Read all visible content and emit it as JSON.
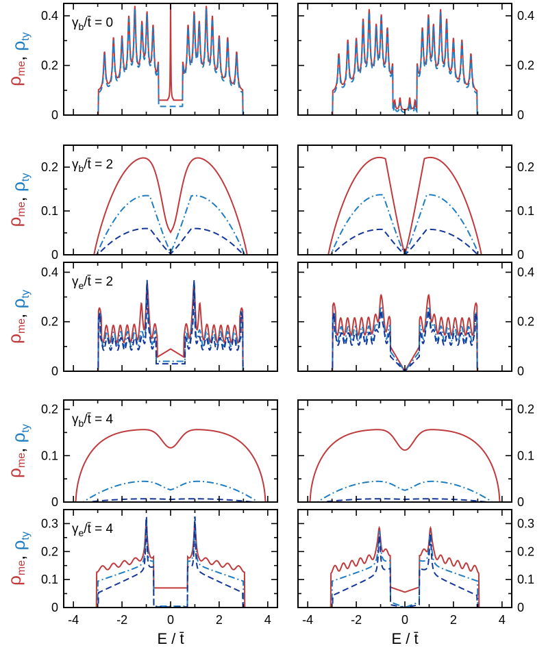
{
  "figure": {
    "xlabel": "E / t̄",
    "ylabel_parts": [
      {
        "text": "ρ",
        "sub": "me",
        "color": "#c0393b"
      },
      {
        "text": ", ",
        "sub": "",
        "color": "#000000"
      },
      {
        "text": "ρ",
        "sub": "ty",
        "color": "#1d7cc2"
      }
    ],
    "colors": {
      "red": "#c0393b",
      "light_blue": "#1d7cc2",
      "dark_blue": "#13359a"
    },
    "x_ticks": [
      "-4",
      "-2",
      "0",
      "2",
      "4"
    ]
  },
  "chart_data": [
    {
      "id": "r1l",
      "type": "line",
      "row": 1,
      "column": "left",
      "annotation": {
        "symbol": "γ",
        "sub": "b",
        "suffix": "/t̄ = 0"
      },
      "xlim": [
        -4.4,
        4.4
      ],
      "ylim": [
        0,
        0.45
      ],
      "y_ticks": [
        "0",
        "0.2",
        "0.4"
      ],
      "series": [
        {
          "name": "ρ_me",
          "style": "solid",
          "color": "red"
        },
        {
          "name": "ρ_ty",
          "style": "dash",
          "color": "light_blue"
        }
      ]
    },
    {
      "id": "r1r",
      "type": "line",
      "row": 1,
      "column": "right",
      "annotation": null,
      "xlim": [
        -4.4,
        4.4
      ],
      "ylim": [
        0,
        0.45
      ],
      "y_ticks": [
        "0",
        "0.2",
        "0.4"
      ],
      "series": [
        {
          "name": "ρ_me",
          "style": "solid",
          "color": "red"
        },
        {
          "name": "ρ_ty",
          "style": "dash",
          "color": "light_blue"
        }
      ]
    },
    {
      "id": "r2l",
      "type": "line",
      "row": 2,
      "column": "left",
      "annotation": {
        "symbol": "γ",
        "sub": "b",
        "suffix": "/t̄ = 2"
      },
      "xlim": [
        -4.4,
        4.4
      ],
      "ylim": [
        0,
        0.25
      ],
      "y_ticks": [
        "0",
        "0.1",
        "0.2"
      ],
      "series": [
        {
          "name": "ρ_me",
          "style": "solid",
          "color": "red"
        },
        {
          "name": "ρ_ty",
          "style": "dashdot",
          "color": "light_blue"
        },
        {
          "name": "ρ_ty",
          "style": "dash",
          "color": "dark_blue"
        }
      ]
    },
    {
      "id": "r2r",
      "type": "line",
      "row": 2,
      "column": "right",
      "annotation": null,
      "xlim": [
        -4.4,
        4.4
      ],
      "ylim": [
        0,
        0.25
      ],
      "y_ticks": [
        "0",
        "0.1",
        "0.2"
      ],
      "series": [
        {
          "name": "ρ_me",
          "style": "solid",
          "color": "red"
        },
        {
          "name": "ρ_ty",
          "style": "dashdot",
          "color": "light_blue"
        },
        {
          "name": "ρ_ty",
          "style": "dash",
          "color": "dark_blue"
        }
      ]
    },
    {
      "id": "r3l",
      "type": "line",
      "row": 3,
      "column": "left",
      "annotation": {
        "symbol": "γ",
        "sub": "e",
        "suffix": "/t̄ = 2"
      },
      "xlim": [
        -4.4,
        4.4
      ],
      "ylim": [
        0,
        0.44
      ],
      "y_ticks": [
        "0",
        "0.2",
        "0.4"
      ],
      "series": [
        {
          "name": "ρ_me",
          "style": "solid",
          "color": "red"
        },
        {
          "name": "ρ_ty",
          "style": "dashdot",
          "color": "light_blue"
        },
        {
          "name": "ρ_ty",
          "style": "dash",
          "color": "dark_blue"
        }
      ]
    },
    {
      "id": "r3r",
      "type": "line",
      "row": 3,
      "column": "right",
      "annotation": null,
      "xlim": [
        -4.4,
        4.4
      ],
      "ylim": [
        0,
        0.44
      ],
      "y_ticks": [
        "0",
        "0.2",
        "0.4"
      ],
      "series": [
        {
          "name": "ρ_me",
          "style": "solid",
          "color": "red"
        },
        {
          "name": "ρ_ty",
          "style": "dashdot",
          "color": "light_blue"
        },
        {
          "name": "ρ_ty",
          "style": "dash",
          "color": "dark_blue"
        }
      ]
    },
    {
      "id": "r4l",
      "type": "line",
      "row": 4,
      "column": "left",
      "annotation": {
        "symbol": "γ",
        "sub": "b",
        "suffix": "/t̄ = 4"
      },
      "xlim": [
        -4.4,
        4.4
      ],
      "ylim": [
        0,
        0.22
      ],
      "y_ticks": [
        "0",
        "0.1",
        "0.2"
      ],
      "series": [
        {
          "name": "ρ_me",
          "style": "solid",
          "color": "red"
        },
        {
          "name": "ρ_ty",
          "style": "dashdot",
          "color": "light_blue"
        },
        {
          "name": "ρ_ty",
          "style": "dash",
          "color": "dark_blue"
        }
      ]
    },
    {
      "id": "r4r",
      "type": "line",
      "row": 4,
      "column": "right",
      "annotation": null,
      "xlim": [
        -4.4,
        4.4
      ],
      "ylim": [
        0,
        0.22
      ],
      "y_ticks": [
        "0",
        "0.1",
        "0.2"
      ],
      "series": [
        {
          "name": "ρ_me",
          "style": "solid",
          "color": "red"
        },
        {
          "name": "ρ_ty",
          "style": "dashdot",
          "color": "light_blue"
        },
        {
          "name": "ρ_ty",
          "style": "dash",
          "color": "dark_blue"
        }
      ]
    },
    {
      "id": "r5l",
      "type": "line",
      "row": 5,
      "column": "left",
      "annotation": {
        "symbol": "γ",
        "sub": "e",
        "suffix": "/t̄ = 4"
      },
      "xlim": [
        -4.4,
        4.4
      ],
      "ylim": [
        0,
        0.35
      ],
      "y_ticks": [
        "0",
        "0.1",
        "0.2",
        "0.3"
      ],
      "series": [
        {
          "name": "ρ_me",
          "style": "solid",
          "color": "red"
        },
        {
          "name": "ρ_ty",
          "style": "dashdot",
          "color": "light_blue"
        },
        {
          "name": "ρ_ty",
          "style": "dash",
          "color": "dark_blue"
        }
      ]
    },
    {
      "id": "r5r",
      "type": "line",
      "row": 5,
      "column": "right",
      "annotation": null,
      "xlim": [
        -4.4,
        4.4
      ],
      "ylim": [
        0,
        0.35
      ],
      "y_ticks": [
        "0",
        "0.1",
        "0.2",
        "0.3"
      ],
      "series": [
        {
          "name": "ρ_me",
          "style": "solid",
          "color": "red"
        },
        {
          "name": "ρ_ty",
          "style": "dashdot",
          "color": "light_blue"
        },
        {
          "name": "ρ_ty",
          "style": "dash",
          "color": "dark_blue"
        }
      ]
    }
  ]
}
